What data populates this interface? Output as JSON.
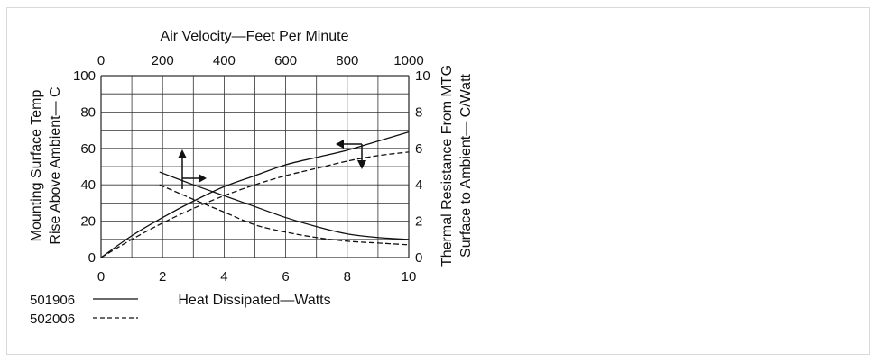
{
  "chart_data": {
    "type": "line",
    "title": "",
    "axes": {
      "bottom": {
        "label": "Heat Dissipated—Watts",
        "range": [
          0,
          10
        ],
        "ticks": [
          "0",
          "2",
          "4",
          "6",
          "8",
          "10"
        ]
      },
      "top": {
        "label": "Air Velocity—Feet Per Minute",
        "range": [
          0,
          1000
        ],
        "ticks": [
          "0",
          "200",
          "400",
          "600",
          "800",
          "1000"
        ]
      },
      "left": {
        "label_line1": "Mounting Surface Temp",
        "label_line2": "Rise Above Ambient— C",
        "range": [
          0,
          100
        ],
        "ticks": [
          "0",
          "20",
          "40",
          "60",
          "80",
          "100"
        ]
      },
      "right": {
        "label_line1": "Thermal Resistance From MTG",
        "label_line2": "Surface to Ambient— C/Watt",
        "range": [
          0,
          10
        ],
        "ticks": [
          "0",
          "2",
          "4",
          "6",
          "8",
          "10"
        ]
      }
    },
    "grid": true,
    "series": [
      {
        "name": "501906",
        "style": "solid",
        "axis": "bottom-left",
        "x": [
          0,
          1,
          2,
          3,
          4,
          5,
          6,
          7,
          8,
          9,
          10
        ],
        "y": [
          0,
          12,
          22,
          31,
          39,
          45,
          51,
          55,
          59,
          64,
          69
        ]
      },
      {
        "name": "502006",
        "style": "dashed",
        "axis": "bottom-left",
        "x": [
          0,
          1,
          2,
          3,
          4,
          5,
          6,
          7,
          8,
          9,
          10
        ],
        "y": [
          0,
          10,
          19,
          27,
          34,
          40,
          45,
          49,
          53,
          56,
          58
        ]
      },
      {
        "name": "501906",
        "style": "solid",
        "axis": "top-right",
        "x": [
          190,
          300,
          400,
          500,
          600,
          700,
          800,
          900,
          1000
        ],
        "y": [
          4.7,
          4.0,
          3.4,
          2.8,
          2.2,
          1.7,
          1.3,
          1.1,
          1.0
        ]
      },
      {
        "name": "502006",
        "style": "dashed",
        "axis": "top-right",
        "x": [
          190,
          300,
          400,
          500,
          600,
          700,
          800,
          900,
          1000
        ],
        "y": [
          4.0,
          3.2,
          2.5,
          1.8,
          1.4,
          1.1,
          0.9,
          0.8,
          0.7
        ]
      }
    ],
    "legend": [
      {
        "label": "501906",
        "style": "solid"
      },
      {
        "label": "502006",
        "style": "dashed"
      }
    ],
    "legend_position": "bottom-left",
    "colors": {
      "line": "#111111",
      "grid": "#333333"
    }
  }
}
